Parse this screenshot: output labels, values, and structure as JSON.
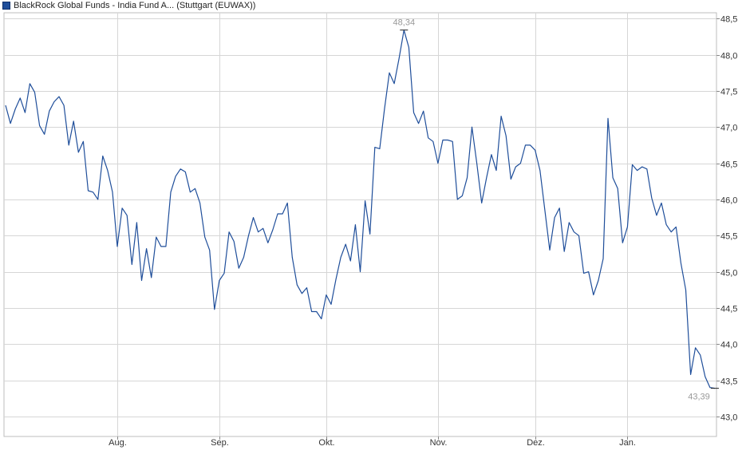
{
  "chart_data": {
    "type": "line",
    "title": "BlackRock Global Funds - India Fund A... (Stuttgart (EUWAX))",
    "xlabel": "",
    "ylabel": "",
    "ylim": [
      43.0,
      48.5
    ],
    "y_ticks": [
      43.0,
      43.5,
      44.0,
      44.5,
      45.0,
      45.5,
      46.0,
      46.5,
      47.0,
      47.5,
      48.0,
      48.5
    ],
    "y_tick_labels": [
      "43,0",
      "43,5",
      "44,0",
      "44,5",
      "45,0",
      "45,5",
      "46,0",
      "46,5",
      "47,0",
      "47,5",
      "48,0",
      "48,5"
    ],
    "x_ticks": [
      {
        "label": "Aug.",
        "index": 23
      },
      {
        "label": "Sep.",
        "index": 44
      },
      {
        "label": "Okt.",
        "index": 66
      },
      {
        "label": "Nov.",
        "index": 89
      },
      {
        "label": "Dez.",
        "index": 109
      },
      {
        "label": "Jan.",
        "index": 128
      }
    ],
    "grid": true,
    "legend_position": "top-left",
    "colors": {
      "line": "#1f4e9a",
      "grid": "#d6d6d6",
      "annotation": "#999999",
      "axis_text": "#333333"
    },
    "annotations": [
      {
        "label": "48,34",
        "index": 82,
        "value": 48.34,
        "kind": "max"
      },
      {
        "label": "43,39",
        "index": 146,
        "value": 43.39,
        "kind": "last"
      }
    ],
    "series": [
      {
        "values": [
          47.3,
          47.05,
          47.25,
          47.4,
          47.2,
          47.6,
          47.48,
          47.02,
          46.9,
          47.22,
          47.35,
          47.42,
          47.3,
          46.75,
          47.08,
          46.65,
          46.8,
          46.12,
          46.1,
          46.0,
          46.6,
          46.4,
          46.1,
          45.35,
          45.88,
          45.78,
          45.1,
          45.68,
          44.88,
          45.32,
          44.92,
          45.48,
          45.35,
          45.35,
          46.1,
          46.32,
          46.42,
          46.38,
          46.1,
          46.15,
          45.95,
          45.48,
          45.3,
          44.48,
          44.88,
          44.98,
          45.55,
          45.42,
          45.05,
          45.2,
          45.5,
          45.75,
          45.55,
          45.6,
          45.4,
          45.58,
          45.8,
          45.8,
          45.95,
          45.2,
          44.82,
          44.7,
          44.78,
          44.45,
          44.45,
          44.35,
          44.68,
          44.55,
          44.9,
          45.2,
          45.38,
          45.15,
          45.65,
          45.0,
          45.98,
          45.52,
          46.72,
          46.7,
          47.25,
          47.75,
          47.6,
          47.95,
          48.34,
          48.1,
          47.2,
          47.05,
          47.22,
          46.85,
          46.8,
          46.5,
          46.82,
          46.82,
          46.8,
          46.0,
          46.05,
          46.3,
          47.0,
          46.5,
          45.95,
          46.3,
          46.62,
          46.4,
          47.15,
          46.88,
          46.28,
          46.45,
          46.5,
          46.75,
          46.75,
          46.68,
          46.4,
          45.85,
          45.3,
          45.75,
          45.88,
          45.28,
          45.68,
          45.55,
          45.5,
          44.98,
          45.0,
          44.68,
          44.88,
          45.18,
          47.12,
          46.3,
          46.15,
          45.4,
          45.62,
          46.48,
          46.4,
          46.45,
          46.42,
          46.02,
          45.78,
          45.95,
          45.65,
          45.55,
          45.62,
          45.12,
          44.75,
          43.58,
          43.95,
          43.85,
          43.55,
          43.4,
          43.39
        ]
      }
    ]
  }
}
